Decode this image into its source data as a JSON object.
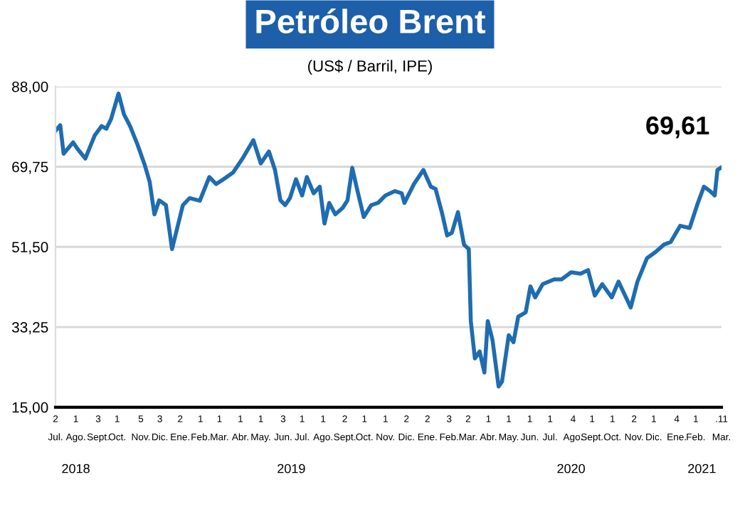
{
  "chart_data": {
    "type": "line",
    "title": "Petróleo Brent",
    "subtitle": "(US$ / Barril, IPE)",
    "x": [
      "2018-07-02",
      "2018-07-09",
      "2018-07-14",
      "2018-07-28",
      "2018-08-04",
      "2018-08-15",
      "2018-08-29",
      "2018-09-08",
      "2018-09-15",
      "2018-09-22",
      "2018-10-03",
      "2018-10-11",
      "2018-10-20",
      "2018-10-31",
      "2018-11-11",
      "2018-11-18",
      "2018-11-25",
      "2018-12-02",
      "2018-12-12",
      "2018-12-21",
      "2019-01-06",
      "2019-01-16",
      "2019-01-31",
      "2019-02-14",
      "2019-02-24",
      "2019-03-07",
      "2019-03-21",
      "2019-04-04",
      "2019-04-20",
      "2019-05-01",
      "2019-05-13",
      "2019-05-22",
      "2019-05-30",
      "2019-06-06",
      "2019-06-13",
      "2019-06-22",
      "2019-07-01",
      "2019-07-08",
      "2019-07-18",
      "2019-07-27",
      "2019-08-03",
      "2019-08-10",
      "2019-08-19",
      "2019-08-30",
      "2019-09-06",
      "2019-09-13",
      "2019-09-20",
      "2019-09-30",
      "2019-10-11",
      "2019-10-21",
      "2019-11-01",
      "2019-11-15",
      "2019-11-25",
      "2019-11-29",
      "2019-12-13",
      "2019-12-27",
      "2020-01-07",
      "2020-01-14",
      "2020-01-24",
      "2020-01-31",
      "2020-02-07",
      "2020-02-16",
      "2020-02-25",
      "2020-03-03",
      "2020-03-06",
      "2020-03-12",
      "2020-03-19",
      "2020-03-26",
      "2020-03-31",
      "2020-04-07",
      "2020-04-16",
      "2020-04-21",
      "2020-05-01",
      "2020-05-08",
      "2020-05-15",
      "2020-05-26",
      "2020-06-02",
      "2020-06-09",
      "2020-06-20",
      "2020-07-07",
      "2020-07-18",
      "2020-08-01",
      "2020-08-15",
      "2020-08-26",
      "2020-09-05",
      "2020-09-16",
      "2020-09-30",
      "2020-10-10",
      "2020-10-28",
      "2020-11-07",
      "2020-11-21",
      "2020-12-05",
      "2020-12-16",
      "2020-12-26",
      "2021-01-09",
      "2021-01-23",
      "2021-02-03",
      "2021-02-13",
      "2021-02-22",
      "2021-03-01",
      "2021-03-05",
      "2021-03-11"
    ],
    "series": [
      {
        "color": "#1f6cb0",
        "values": [
          77.9,
          79.2,
          72.7,
          75.3,
          73.7,
          71.6,
          76.9,
          79.0,
          78.4,
          80.6,
          86.4,
          81.7,
          79.0,
          74.8,
          70.0,
          66.3,
          58.9,
          62.1,
          61.0,
          51.0,
          61.0,
          62.6,
          62.0,
          67.4,
          65.8,
          66.9,
          68.4,
          71.6,
          75.8,
          70.5,
          73.2,
          69.0,
          62.1,
          61.0,
          62.6,
          66.9,
          63.2,
          67.4,
          63.7,
          65.2,
          56.8,
          61.5,
          58.9,
          60.4,
          62.1,
          69.5,
          64.7,
          58.3,
          61.0,
          61.5,
          63.2,
          64.2,
          63.7,
          61.5,
          65.8,
          69.0,
          65.2,
          64.7,
          58.9,
          54.1,
          54.7,
          59.4,
          52.0,
          51.0,
          34.6,
          26.1,
          27.7,
          22.9,
          34.6,
          30.3,
          19.7,
          20.8,
          31.4,
          29.8,
          35.6,
          36.6,
          42.5,
          40.0,
          43.0,
          44.1,
          44.1,
          45.7,
          45.4,
          46.2,
          40.4,
          43.0,
          40.0,
          43.6,
          37.7,
          43.6,
          48.9,
          50.5,
          52.0,
          52.6,
          56.3,
          55.8,
          61.0,
          65.2,
          64.2,
          63.2,
          69.0,
          69.61
        ]
      }
    ],
    "xlim": [
      "2018-07-02",
      "2021-03-11"
    ],
    "xticks": [
      {
        "value": "2018-07-02",
        "label": "2\nJul."
      },
      {
        "value": "2018-08-01",
        "label": "1\nAgo."
      },
      {
        "value": "2018-09-03",
        "label": "3\nSept."
      },
      {
        "value": "2018-10-01",
        "label": "1\nOct."
      },
      {
        "value": "2018-11-05",
        "label": "5\nNov."
      },
      {
        "value": "2018-12-03",
        "label": "3\nDic."
      },
      {
        "value": "2019-01-02",
        "label": "2\nEne."
      },
      {
        "value": "2019-02-01",
        "label": "1\nFeb."
      },
      {
        "value": "2019-03-01",
        "label": "1\nMar."
      },
      {
        "value": "2019-04-01",
        "label": "1\nAbr."
      },
      {
        "value": "2019-05-01",
        "label": "1\nMay."
      },
      {
        "value": "2019-06-03",
        "label": "3\nJun."
      },
      {
        "value": "2019-07-01",
        "label": "1\nJul."
      },
      {
        "value": "2019-08-01",
        "label": "1\nAgo."
      },
      {
        "value": "2019-09-02",
        "label": "2\nSept."
      },
      {
        "value": "2019-10-01",
        "label": "1\nOct."
      },
      {
        "value": "2019-11-01",
        "label": "1\nNov."
      },
      {
        "value": "2019-12-02",
        "label": "2\nDic."
      },
      {
        "value": "2020-01-02",
        "label": "2\nEne."
      },
      {
        "value": "2020-02-03",
        "label": "3\nFeb."
      },
      {
        "value": "2020-03-02",
        "label": "2\nMar."
      },
      {
        "value": "2020-04-01",
        "label": "1\nAbr."
      },
      {
        "value": "2020-05-01",
        "label": "1\nMay."
      },
      {
        "value": "2020-06-01",
        "label": "1\nJun."
      },
      {
        "value": "2020-07-01",
        "label": "1\nJul."
      },
      {
        "value": "2020-08-04",
        "label": "4\nAgo."
      },
      {
        "value": "2020-09-01",
        "label": "1\nSept."
      },
      {
        "value": "2020-10-01",
        "label": "1\nOct."
      },
      {
        "value": "2020-11-02",
        "label": "2\nNov."
      },
      {
        "value": "2020-12-01",
        "label": "1\nDic."
      },
      {
        "value": "2021-01-04",
        "label": "4\nEne."
      },
      {
        "value": "2021-02-01",
        "label": "1\nFeb."
      },
      {
        "value": "2021-03-11",
        "label": ".11\nMar."
      }
    ],
    "x2lim": [
      "2018-07-02",
      "2021-03-11"
    ],
    "x2ticks": [
      {
        "value": "2018-08-01",
        "label": "2018"
      },
      {
        "value": "2019-06-15",
        "label": "2019"
      },
      {
        "value": "2020-08-01",
        "label": "2020"
      },
      {
        "value": "2021-02-10",
        "label": "2021"
      }
    ],
    "ylim": [
      15,
      88
    ],
    "yticks": [
      {
        "value": 15,
        "label": "15,00"
      },
      {
        "value": 33.25,
        "label": "33,25"
      },
      {
        "value": 51.5,
        "label": "51,50"
      },
      {
        "value": 69.75,
        "label": "69,75"
      },
      {
        "value": 88,
        "label": "88,00"
      }
    ],
    "grid": "y",
    "marker": "none",
    "line_style": "solid",
    "annotations": [
      {
        "text": "69,61",
        "x": "2021-03-11",
        "y": 69.61
      }
    ]
  }
}
